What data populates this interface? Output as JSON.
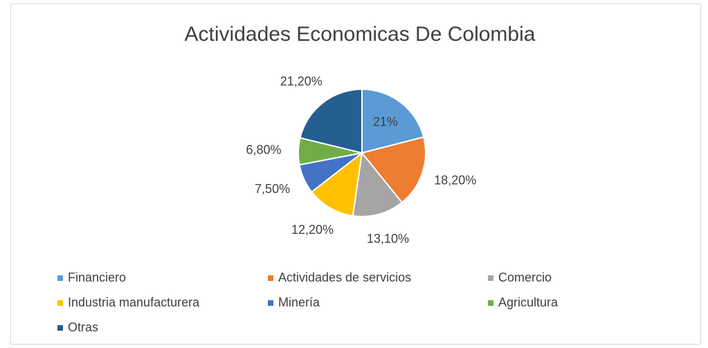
{
  "chart_data": {
    "type": "pie",
    "title": "Actividades Economicas De Colombia",
    "categories": [
      "Financiero",
      "Actividades de servicios",
      "Comercio",
      "Industria manufacturera",
      "Minería",
      "Agricultura",
      "Otras"
    ],
    "values": [
      21,
      18.2,
      13.1,
      12.2,
      7.5,
      6.8,
      21.2
    ],
    "value_labels": [
      "21%",
      "18,20%",
      "13,10%",
      "12,20%",
      "7,50%",
      "6,80%",
      "21,20%"
    ],
    "colors": [
      "#5b9bd5",
      "#ed7d31",
      "#a5a5a5",
      "#ffc000",
      "#4472c4",
      "#70ad47",
      "#255e91"
    ],
    "legend": "bottom"
  }
}
